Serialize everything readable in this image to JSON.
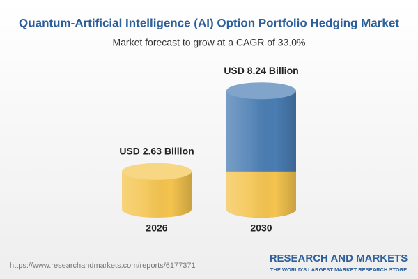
{
  "chart_data": {
    "type": "cylinder",
    "title": "Quantum-Artificial Intelligence (AI) Option Portfolio Hedging Market",
    "subtitle": "Market forecast to grow at a CAGR of 33.0%",
    "categories": [
      "2026",
      "2030"
    ],
    "values": [
      2.63,
      8.24
    ],
    "value_labels": [
      "USD 2.63 Billion",
      "USD 8.24 Billion"
    ],
    "colors": [
      "#f4c44f",
      "#4a7db3"
    ]
  },
  "footer": {
    "url": "https://www.researchandmarkets.com/reports/6177371",
    "brand": "RESEARCH AND MARKETS",
    "tagline": "THE WORLD'S LARGEST MARKET RESEARCH STORE"
  }
}
